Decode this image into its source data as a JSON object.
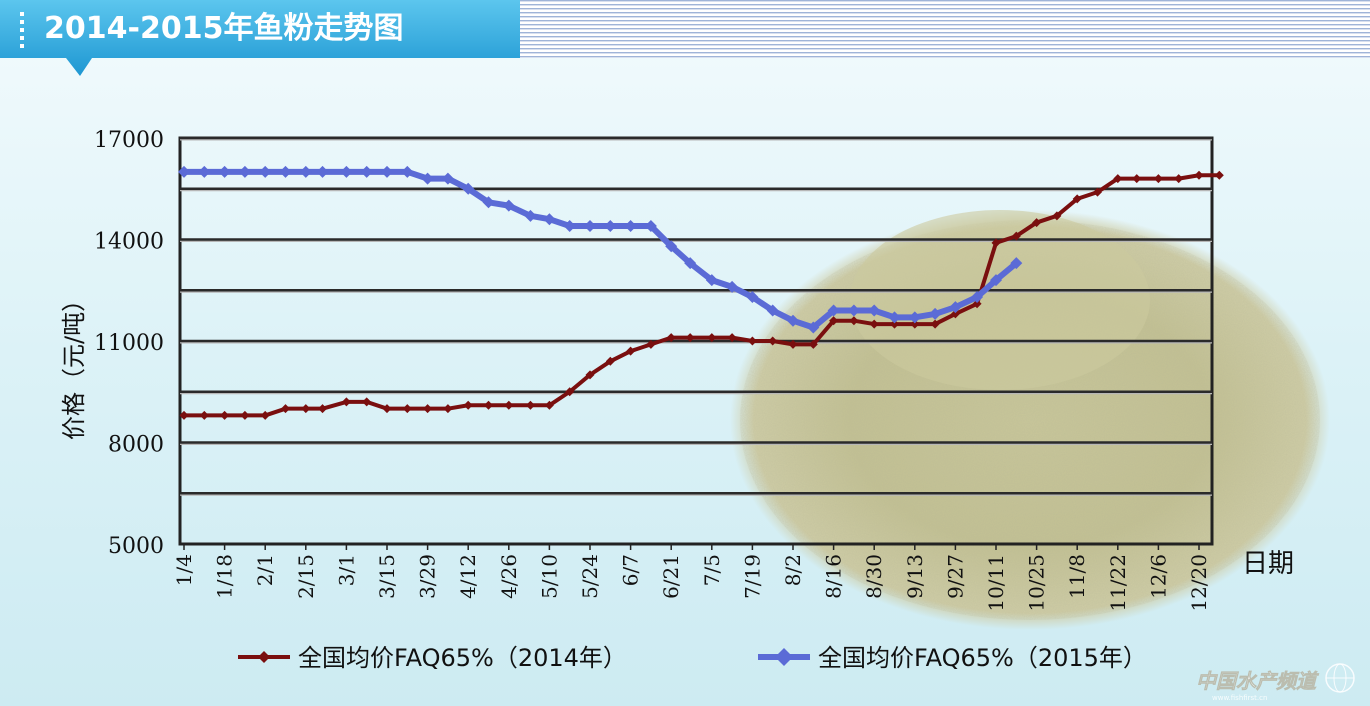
{
  "header": {
    "title": "2014-2015年鱼粉走势图"
  },
  "watermark": {
    "text": "中国水产频道",
    "subtext": "www.fishfirst.cn"
  },
  "colors": {
    "series_2014": "#7a0f0f",
    "series_2015": "#5b6bd6",
    "header_bg": "#2aa9df",
    "chart_bg": "#dff4f8"
  },
  "chart_data": {
    "type": "line",
    "title": "2014-2015年鱼粉走势图",
    "ylabel": "价格（元/吨）",
    "xlabel": "日期",
    "ylim": [
      5000,
      17000
    ],
    "y_ticks": [
      5000,
      8000,
      11000,
      14000,
      17000
    ],
    "gridlines_y": [
      6500,
      8000,
      9500,
      11000,
      12500,
      14000,
      15500,
      17000
    ],
    "grid": true,
    "legend_position": "bottom",
    "x_tick_labels": [
      "1/4",
      "1/18",
      "2/1",
      "2/15",
      "3/1",
      "3/15",
      "3/29",
      "4/12",
      "4/26",
      "5/10",
      "5/24",
      "6/7",
      "6/21",
      "7/5",
      "7/19",
      "8/2",
      "8/16",
      "8/30",
      "9/13",
      "9/27",
      "10/11",
      "10/25",
      "11/8",
      "11/22",
      "12/6",
      "12/20"
    ],
    "series": [
      {
        "name": "全国均价FAQ65%（2014年）",
        "color": "#7a0f0f",
        "points": [
          [
            "1/4",
            8800
          ],
          [
            "1/11",
            8800
          ],
          [
            "1/18",
            8800
          ],
          [
            "1/25",
            8800
          ],
          [
            "2/1",
            8800
          ],
          [
            "2/8",
            9000
          ],
          [
            "2/15",
            9000
          ],
          [
            "2/22",
            9000
          ],
          [
            "3/1",
            9200
          ],
          [
            "3/8",
            9200
          ],
          [
            "3/15",
            9000
          ],
          [
            "3/22",
            9000
          ],
          [
            "3/29",
            9000
          ],
          [
            "4/5",
            9000
          ],
          [
            "4/12",
            9100
          ],
          [
            "4/19",
            9100
          ],
          [
            "4/26",
            9100
          ],
          [
            "5/3",
            9100
          ],
          [
            "5/10",
            9100
          ],
          [
            "5/17",
            9500
          ],
          [
            "5/24",
            10000
          ],
          [
            "5/31",
            10400
          ],
          [
            "6/7",
            10700
          ],
          [
            "6/14",
            10900
          ],
          [
            "6/21",
            11100
          ],
          [
            "6/28",
            11100
          ],
          [
            "7/5",
            11100
          ],
          [
            "7/12",
            11100
          ],
          [
            "7/19",
            11000
          ],
          [
            "7/26",
            11000
          ],
          [
            "8/2",
            10900
          ],
          [
            "8/9",
            10900
          ],
          [
            "8/16",
            11600
          ],
          [
            "8/23",
            11600
          ],
          [
            "8/30",
            11500
          ],
          [
            "9/6",
            11500
          ],
          [
            "9/13",
            11500
          ],
          [
            "9/20",
            11500
          ],
          [
            "9/27",
            11800
          ],
          [
            "10/4",
            12100
          ],
          [
            "10/11",
            13900
          ],
          [
            "10/18",
            14100
          ],
          [
            "10/25",
            14500
          ],
          [
            "11/1",
            14700
          ],
          [
            "11/8",
            15200
          ],
          [
            "11/15",
            15400
          ],
          [
            "11/22",
            15800
          ],
          [
            "11/29",
            15800
          ],
          [
            "12/6",
            15800
          ],
          [
            "12/13",
            15800
          ],
          [
            "12/20",
            15900
          ],
          [
            "12/27",
            15900
          ]
        ]
      },
      {
        "name": "全国均价FAQ65%（2015年）",
        "color": "#5b6bd6",
        "points": [
          [
            "1/4",
            16000
          ],
          [
            "1/11",
            16000
          ],
          [
            "1/18",
            16000
          ],
          [
            "1/25",
            16000
          ],
          [
            "2/1",
            16000
          ],
          [
            "2/8",
            16000
          ],
          [
            "2/15",
            16000
          ],
          [
            "2/22",
            16000
          ],
          [
            "3/1",
            16000
          ],
          [
            "3/8",
            16000
          ],
          [
            "3/15",
            16000
          ],
          [
            "3/22",
            16000
          ],
          [
            "3/29",
            15800
          ],
          [
            "4/5",
            15800
          ],
          [
            "4/12",
            15500
          ],
          [
            "4/19",
            15100
          ],
          [
            "4/26",
            15000
          ],
          [
            "5/3",
            14700
          ],
          [
            "5/10",
            14600
          ],
          [
            "5/17",
            14400
          ],
          [
            "5/24",
            14400
          ],
          [
            "5/31",
            14400
          ],
          [
            "6/7",
            14400
          ],
          [
            "6/14",
            14400
          ],
          [
            "6/21",
            13800
          ],
          [
            "6/28",
            13300
          ],
          [
            "7/5",
            12800
          ],
          [
            "7/12",
            12600
          ],
          [
            "7/19",
            12300
          ],
          [
            "7/26",
            11900
          ],
          [
            "8/2",
            11600
          ],
          [
            "8/9",
            11400
          ],
          [
            "8/16",
            11900
          ],
          [
            "8/23",
            11900
          ],
          [
            "8/30",
            11900
          ],
          [
            "9/6",
            11700
          ],
          [
            "9/13",
            11700
          ],
          [
            "9/20",
            11800
          ],
          [
            "9/27",
            12000
          ],
          [
            "10/4",
            12300
          ],
          [
            "10/11",
            12800
          ],
          [
            "10/18",
            13300
          ]
        ]
      }
    ]
  }
}
